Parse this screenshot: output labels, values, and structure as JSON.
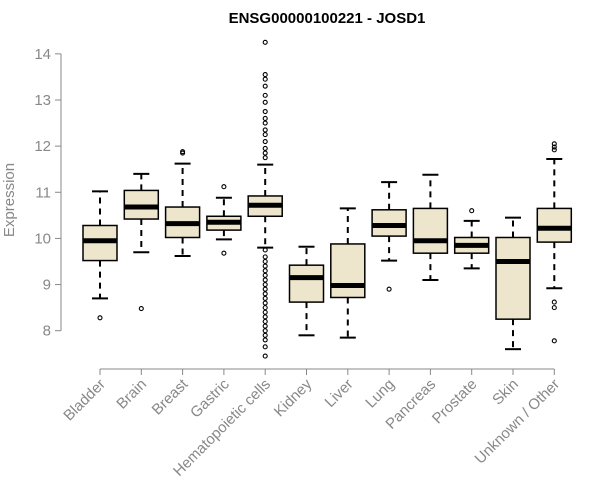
{
  "chart_data": {
    "type": "boxplot",
    "title": "ENSG00000100221 - JOSD1",
    "xlabel": "",
    "ylabel": "Expression",
    "ylim": [
      7.3,
      14.3
    ],
    "yticks": [
      8,
      9,
      10,
      11,
      12,
      13,
      14
    ],
    "categories": [
      "Bladder",
      "Brain",
      "Breast",
      "Gastric",
      "Hematopoietic cells",
      "Kidney",
      "Liver",
      "Lung",
      "Pancreas",
      "Prostate",
      "Skin",
      "Unknown / Other"
    ],
    "boxes": [
      {
        "category": "Bladder",
        "min": 8.7,
        "q1": 9.52,
        "median": 9.95,
        "q3": 10.28,
        "max": 11.02,
        "outliers": [
          8.28
        ]
      },
      {
        "category": "Brain",
        "min": 9.7,
        "q1": 10.42,
        "median": 10.68,
        "q3": 11.04,
        "max": 11.4,
        "outliers": [
          8.48
        ]
      },
      {
        "category": "Breast",
        "min": 9.62,
        "q1": 10.02,
        "median": 10.32,
        "q3": 10.68,
        "max": 11.62,
        "outliers": [
          11.85,
          11.88
        ]
      },
      {
        "category": "Gastric",
        "min": 9.98,
        "q1": 10.18,
        "median": 10.35,
        "q3": 10.48,
        "max": 10.88,
        "outliers": [
          9.68,
          11.12
        ]
      },
      {
        "category": "Hematopoietic cells",
        "min": 9.8,
        "q1": 10.48,
        "median": 10.72,
        "q3": 10.92,
        "max": 11.6,
        "outliers": [
          14.25,
          13.55,
          13.45,
          13.3,
          13.1,
          12.95,
          12.75,
          12.6,
          12.5,
          12.35,
          12.25,
          12.1,
          11.95,
          11.85,
          11.75,
          9.75,
          9.6,
          9.5,
          9.4,
          9.3,
          9.2,
          9.1,
          9.0,
          8.9,
          8.8,
          8.7,
          8.6,
          8.5,
          8.4,
          8.3,
          8.2,
          8.1,
          8.0,
          7.9,
          7.8,
          7.65,
          7.45
        ]
      },
      {
        "category": "Kidney",
        "min": 7.9,
        "q1": 8.62,
        "median": 9.15,
        "q3": 9.42,
        "max": 9.82,
        "outliers": []
      },
      {
        "category": "Liver",
        "min": 7.85,
        "q1": 8.72,
        "median": 8.98,
        "q3": 9.88,
        "max": 10.65,
        "outliers": []
      },
      {
        "category": "Lung",
        "min": 9.52,
        "q1": 10.05,
        "median": 10.28,
        "q3": 10.62,
        "max": 11.22,
        "outliers": [
          8.9
        ]
      },
      {
        "category": "Pancreas",
        "min": 9.1,
        "q1": 9.68,
        "median": 9.95,
        "q3": 10.65,
        "max": 11.38,
        "outliers": []
      },
      {
        "category": "Prostate",
        "min": 9.35,
        "q1": 9.68,
        "median": 9.85,
        "q3": 10.02,
        "max": 10.38,
        "outliers": [
          10.6
        ]
      },
      {
        "category": "Skin",
        "min": 7.6,
        "q1": 8.25,
        "median": 9.5,
        "q3": 10.02,
        "max": 10.45,
        "outliers": []
      },
      {
        "category": "Unknown / Other",
        "min": 8.92,
        "q1": 9.92,
        "median": 10.22,
        "q3": 10.65,
        "max": 11.72,
        "outliers": [
          12.05,
          11.98,
          11.92,
          8.62,
          8.5,
          7.78
        ]
      }
    ],
    "box_fill": "#ede6cc",
    "box_stroke": "#000000",
    "axis_color": "#888888"
  }
}
